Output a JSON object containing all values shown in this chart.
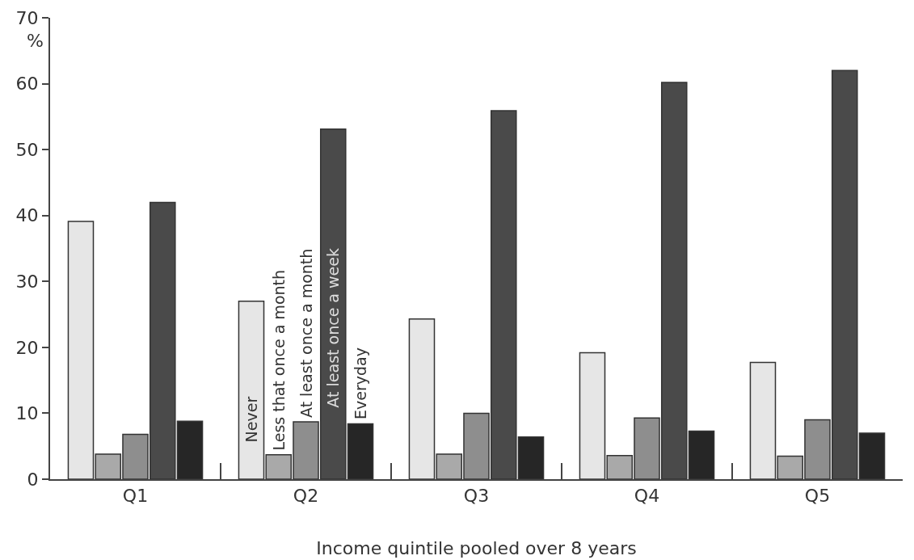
{
  "chart_data": {
    "type": "bar",
    "xlabel": "Income quintile pooled over 8 years",
    "ylabel": "%",
    "categories": [
      "Q1",
      "Q2",
      "Q3",
      "Q4",
      "Q5"
    ],
    "series": [
      {
        "name": "Never",
        "color": "#e6e6e6",
        "values": [
          39.1,
          27.0,
          24.3,
          19.2,
          17.7
        ]
      },
      {
        "name": "Less that once a month",
        "color": "#a9a9a9",
        "values": [
          3.8,
          3.7,
          3.8,
          3.6,
          3.5
        ]
      },
      {
        "name": "At least once a month",
        "color": "#8e8e8e",
        "values": [
          6.8,
          8.7,
          10.0,
          9.3,
          9.0
        ]
      },
      {
        "name": "At least once a week",
        "color": "#4a4a4a",
        "values": [
          42.0,
          53.1,
          55.9,
          60.2,
          62.0
        ]
      },
      {
        "name": "Everyday",
        "color": "#262626",
        "values": [
          8.8,
          8.4,
          6.4,
          7.3,
          7.0
        ]
      }
    ],
    "ylim": [
      0,
      70
    ],
    "yticks": [
      0,
      10,
      20,
      30,
      40,
      50,
      60,
      70
    ],
    "grid": false,
    "legend": false
  }
}
